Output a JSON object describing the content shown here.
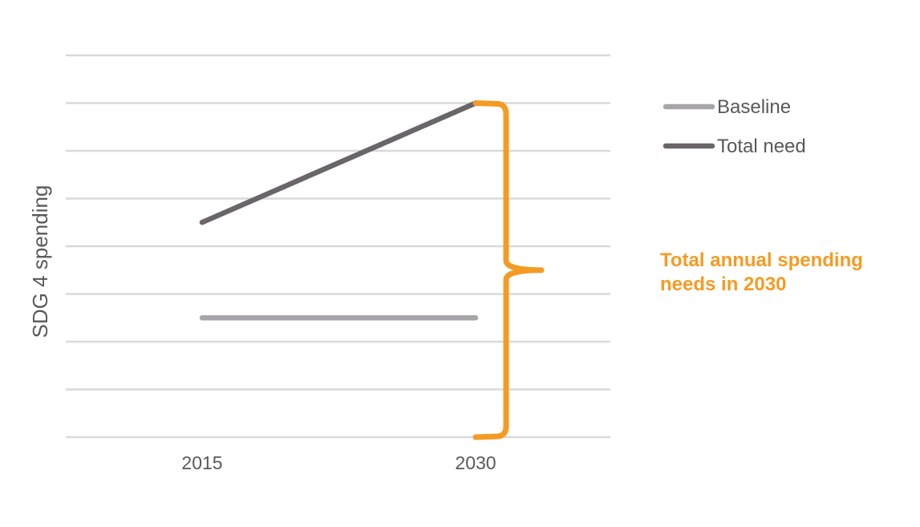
{
  "chart_data": {
    "type": "line",
    "x": [
      "2015",
      "2030"
    ],
    "ylabel": "SDG 4 spending",
    "ylim": [
      0,
      8
    ],
    "grid": true,
    "y_tick_labels_shown": false,
    "series": [
      {
        "name": "Baseline",
        "values": [
          2.5,
          2.5
        ],
        "color": "#a7a5aa"
      },
      {
        "name": "Total need",
        "values": [
          4.5,
          7
        ],
        "color": "#6a6568"
      }
    ],
    "legend": {
      "placement": "right-top"
    },
    "annotation": {
      "text": "Total annual spending\nneeds in 2030",
      "color": "#f59b23",
      "bracket_range": [
        0,
        7
      ],
      "at_x": "2030"
    }
  }
}
